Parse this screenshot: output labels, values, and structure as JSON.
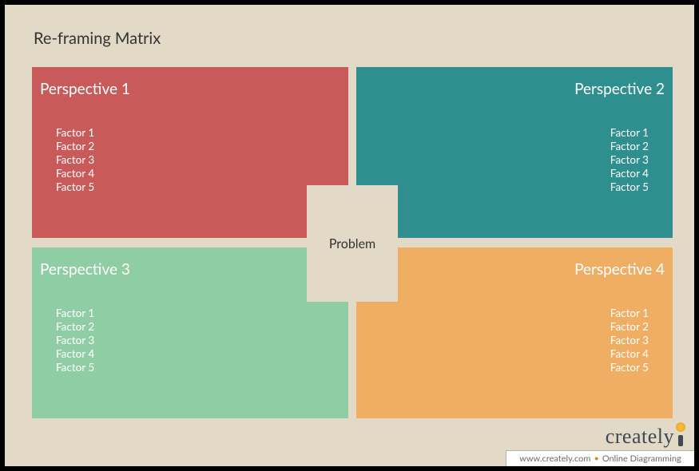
{
  "diagram": {
    "type": "infographic",
    "title": "Re-framing Matrix",
    "background_color": "#e2d9c6",
    "frame_color": "#000000",
    "text_color": "#333333",
    "title_fontsize": 20,
    "quadrant_title_fontsize": 19,
    "factor_fontsize": 13.5,
    "quadrants": [
      {
        "key": "top_left",
        "title": "Perspective 1",
        "color": "#c85a5a",
        "title_align": "left",
        "factors_align": "left",
        "factors": [
          "Factor 1",
          "Factor 2",
          "Factor 3",
          "Factor 4",
          "Factor 5"
        ]
      },
      {
        "key": "top_right",
        "title": "Perspective 2",
        "color": "#2f8f8f",
        "title_align": "right",
        "factors_align": "right",
        "factors": [
          "Factor 1",
          "Factor 2",
          "Factor 3",
          "Factor 4",
          "Factor 5"
        ]
      },
      {
        "key": "bottom_left",
        "title": "Perspective 3",
        "color": "#8fcea4",
        "title_align": "left",
        "factors_align": "left",
        "factors": [
          "Factor 1",
          "Factor 2",
          "Factor 3",
          "Factor 4",
          "Factor 5"
        ]
      },
      {
        "key": "bottom_right",
        "title": "Perspective 4",
        "color": "#efae63",
        "title_align": "right",
        "factors_align": "right",
        "factors": [
          "Factor 1",
          "Factor 2",
          "Factor 3",
          "Factor 4",
          "Factor 5"
        ]
      }
    ],
    "center": {
      "label": "Problem",
      "background_color": "#e2d9c6",
      "text_color": "#333333"
    }
  },
  "branding": {
    "logo_text": "creately",
    "logo_text_color": "#3c4a55",
    "bulb_color": "#f0a929",
    "footer_url": "www.creately.com",
    "footer_tagline": "Online Diagramming",
    "footer_background": "#ffffff",
    "footer_text_color": "#6b6b6b",
    "footer_dot_color": "#d08a2f"
  }
}
